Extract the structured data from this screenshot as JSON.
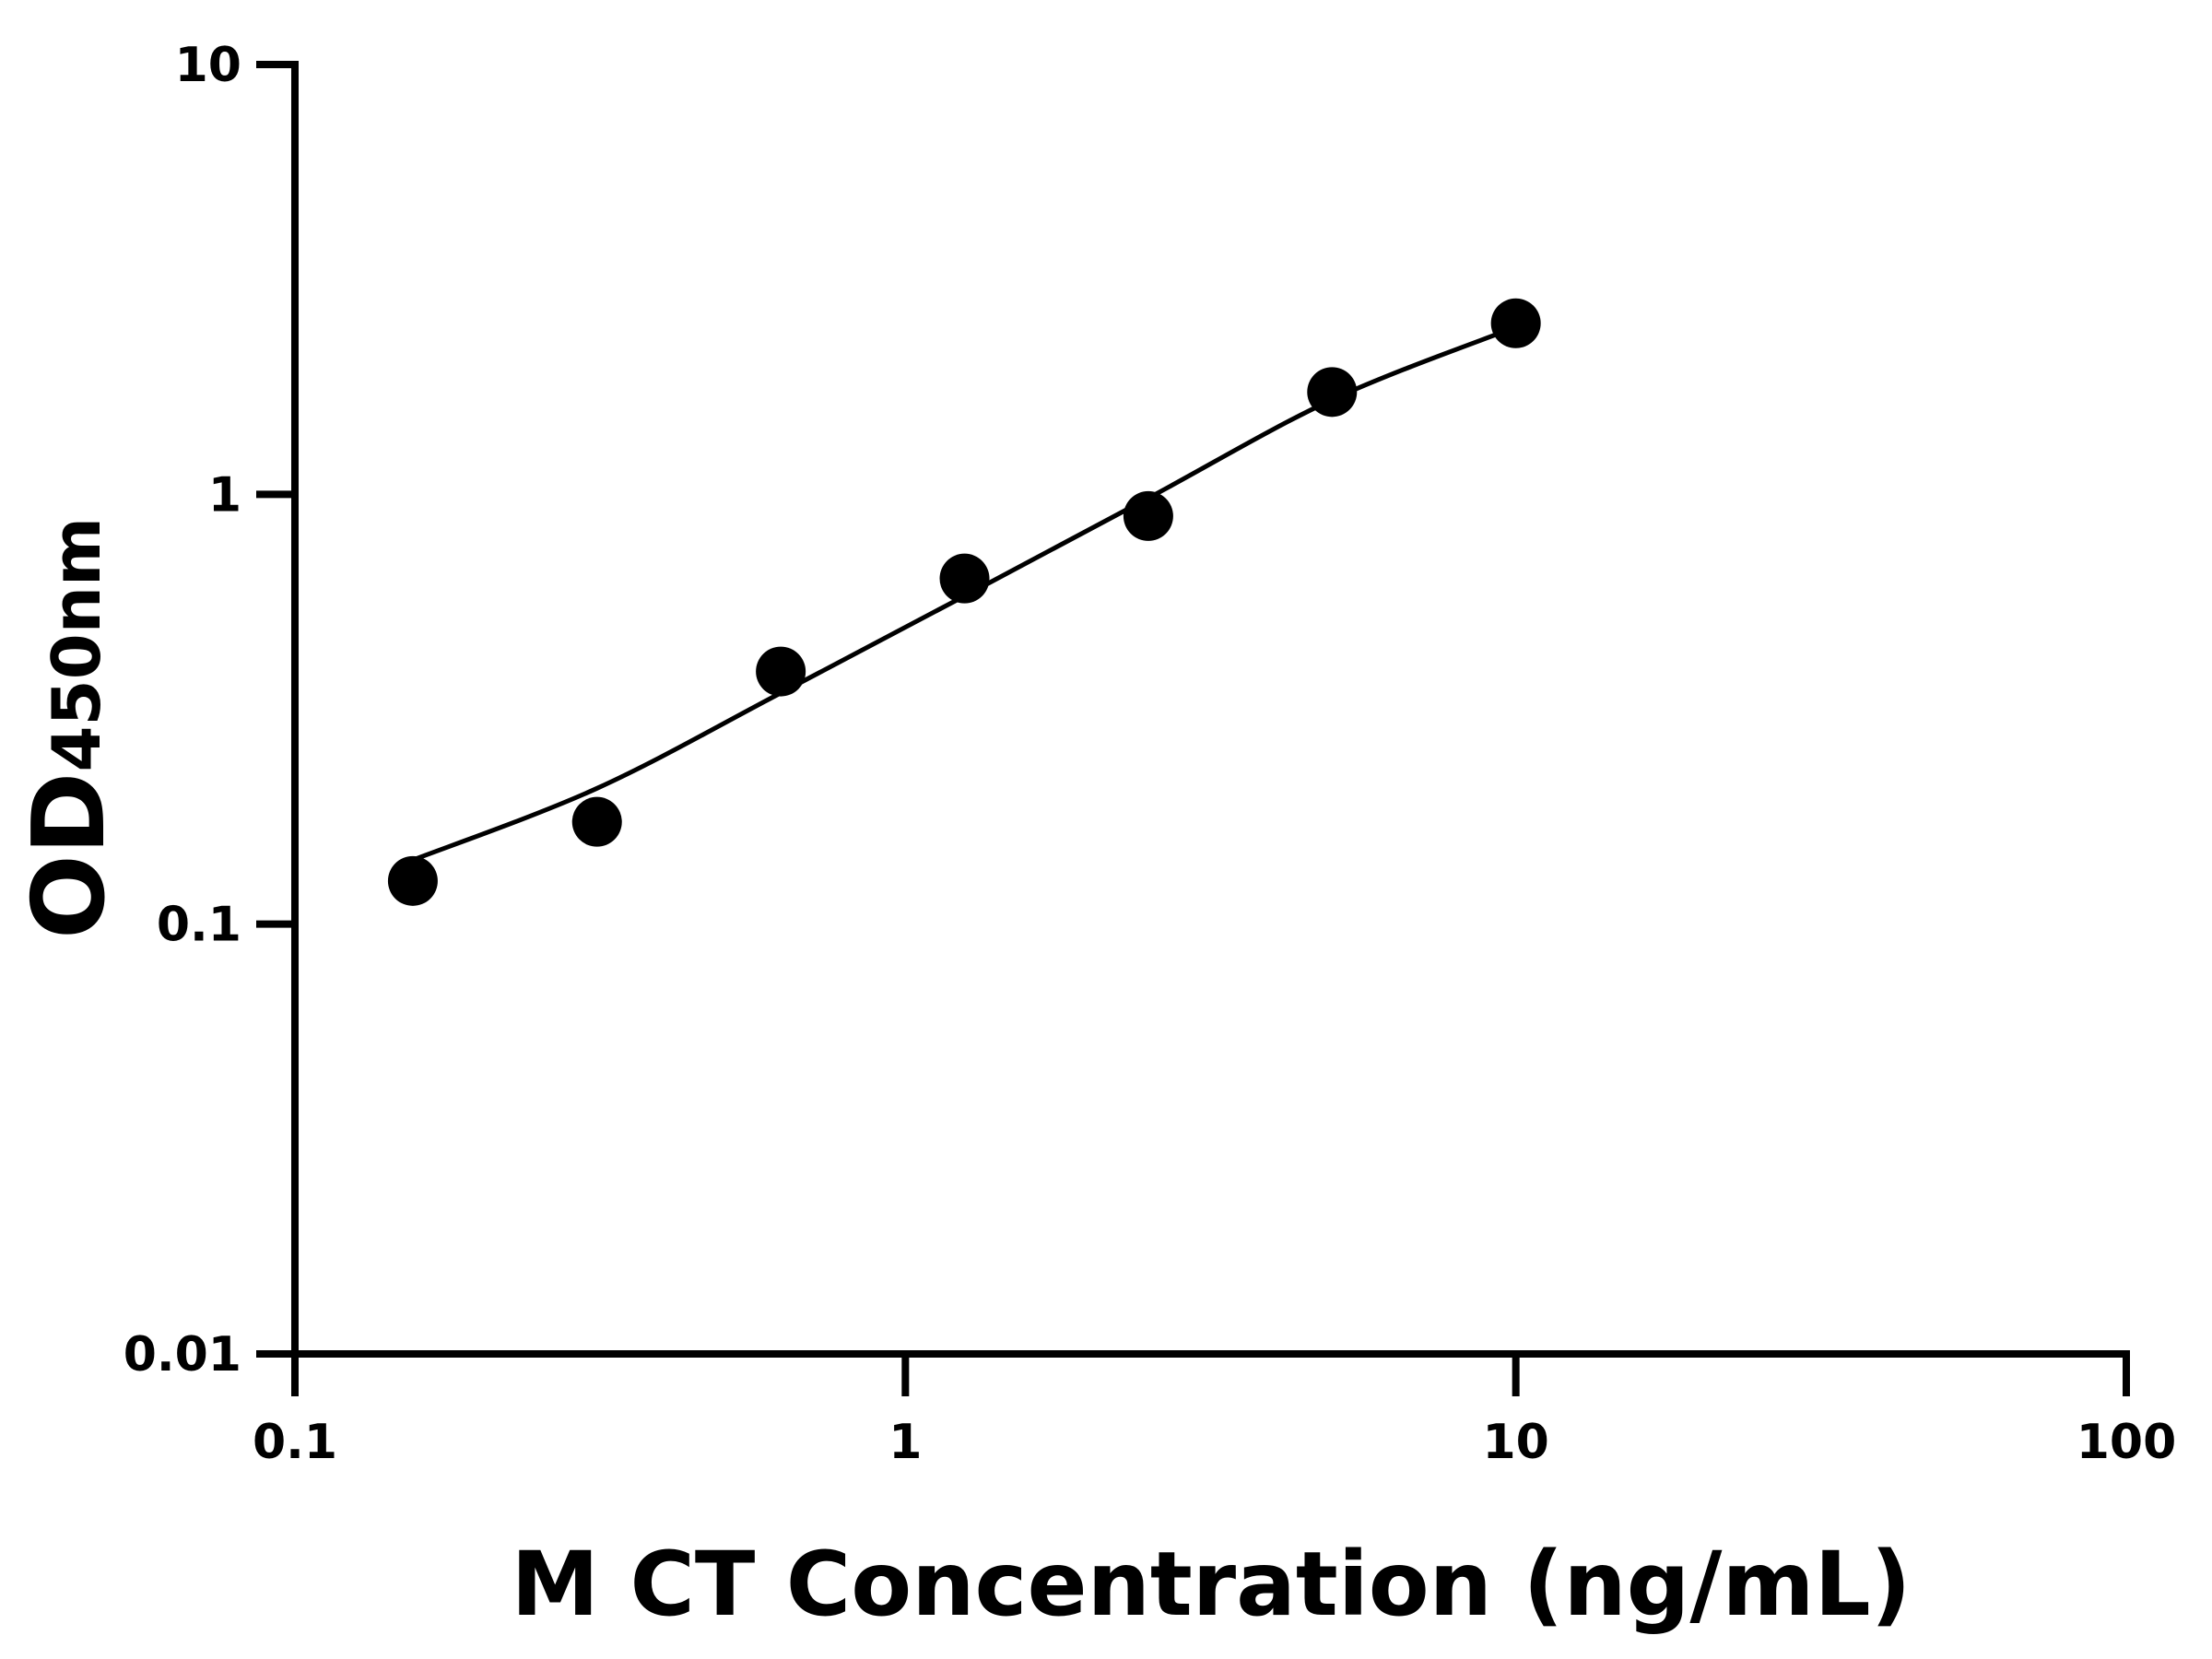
{
  "chart_data": {
    "type": "scatter",
    "xlabel": "M CT Concentration (ng/mL)",
    "ylabel_main": "OD",
    "ylabel_sub": "450nm",
    "x_scale": "log",
    "y_scale": "log",
    "xlim": [
      0.1,
      100
    ],
    "ylim": [
      0.01,
      10
    ],
    "x_ticks": [
      "0.1",
      "1",
      "10",
      "100"
    ],
    "x_tick_values": [
      0.1,
      1,
      10,
      100
    ],
    "y_ticks": [
      "0.01",
      "0.1",
      "1",
      "10"
    ],
    "y_tick_values": [
      0.01,
      0.1,
      1,
      10
    ],
    "grid": false,
    "points": {
      "x": [
        0.156,
        0.3125,
        0.625,
        1.25,
        2.5,
        5,
        10
      ],
      "y": [
        0.126,
        0.173,
        0.387,
        0.637,
        0.89,
        1.73,
        2.5
      ]
    },
    "fit_curve": {
      "x": [
        0.156,
        0.3125,
        0.625,
        1.25,
        2.5,
        5,
        10
      ],
      "y": [
        0.141,
        0.207,
        0.345,
        0.58,
        0.98,
        1.66,
        2.45
      ]
    },
    "colors": {
      "points": "#000000",
      "curve": "#000000",
      "axes": "#000000"
    }
  }
}
